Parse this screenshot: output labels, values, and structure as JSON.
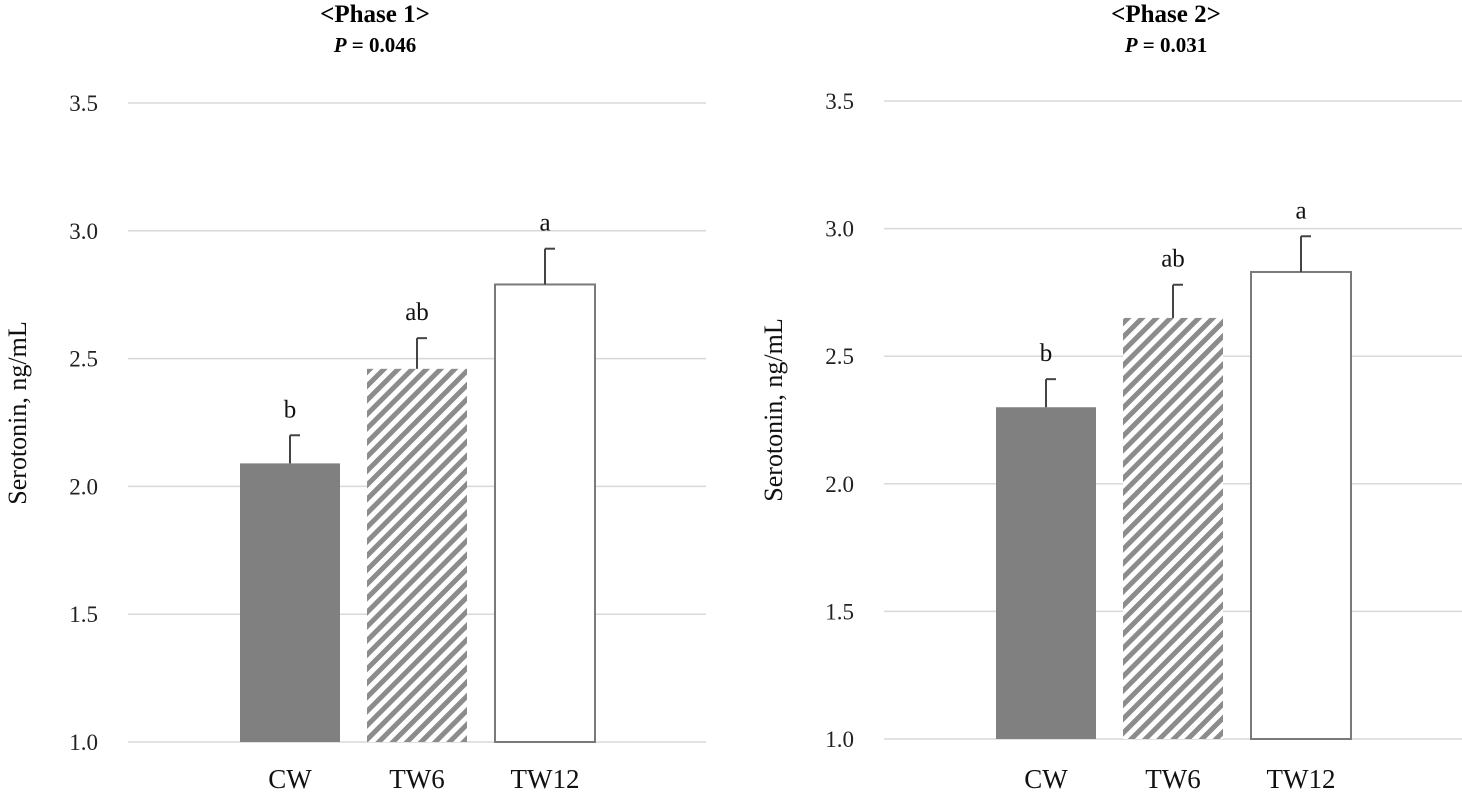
{
  "colors": {
    "cw_fill": "#808080",
    "tw6_stripe": "#8c8c8c",
    "tw12_fill": "#ffffff",
    "bar_outline": "#7a7a7a",
    "grid": "#d9d9d9"
  },
  "chart_data": [
    {
      "type": "bar",
      "title": "<Phase 1>",
      "subtitle_italic": "P",
      "subtitle_rest": " = 0.046",
      "ylabel": "Serotonin, ng/mL",
      "xlabel": "",
      "ylim": [
        1.0,
        3.5
      ],
      "yticks": [
        "1.0",
        "1.5",
        "2.0",
        "2.5",
        "3.0",
        "3.5"
      ],
      "categories": [
        "CW",
        "TW6",
        "TW12"
      ],
      "values": [
        2.09,
        2.46,
        2.79
      ],
      "errors": [
        0.11,
        0.12,
        0.14
      ],
      "significance": [
        "b",
        "ab",
        "a"
      ],
      "patterns": [
        "solid",
        "hatch",
        "open"
      ],
      "grid": true
    },
    {
      "type": "bar",
      "title": "<Phase 2>",
      "subtitle_italic": "P",
      "subtitle_rest": " = 0.031",
      "ylabel": "Serotonin, ng/mL",
      "xlabel": "",
      "ylim": [
        1.0,
        3.5
      ],
      "yticks": [
        "1.0",
        "1.5",
        "2.0",
        "2.5",
        "3.0",
        "3.5"
      ],
      "categories": [
        "CW",
        "TW6",
        "TW12"
      ],
      "values": [
        2.3,
        2.65,
        2.83
      ],
      "errors": [
        0.11,
        0.13,
        0.14
      ],
      "significance": [
        "b",
        "ab",
        "a"
      ],
      "patterns": [
        "solid",
        "hatch",
        "open"
      ],
      "grid": true
    }
  ]
}
